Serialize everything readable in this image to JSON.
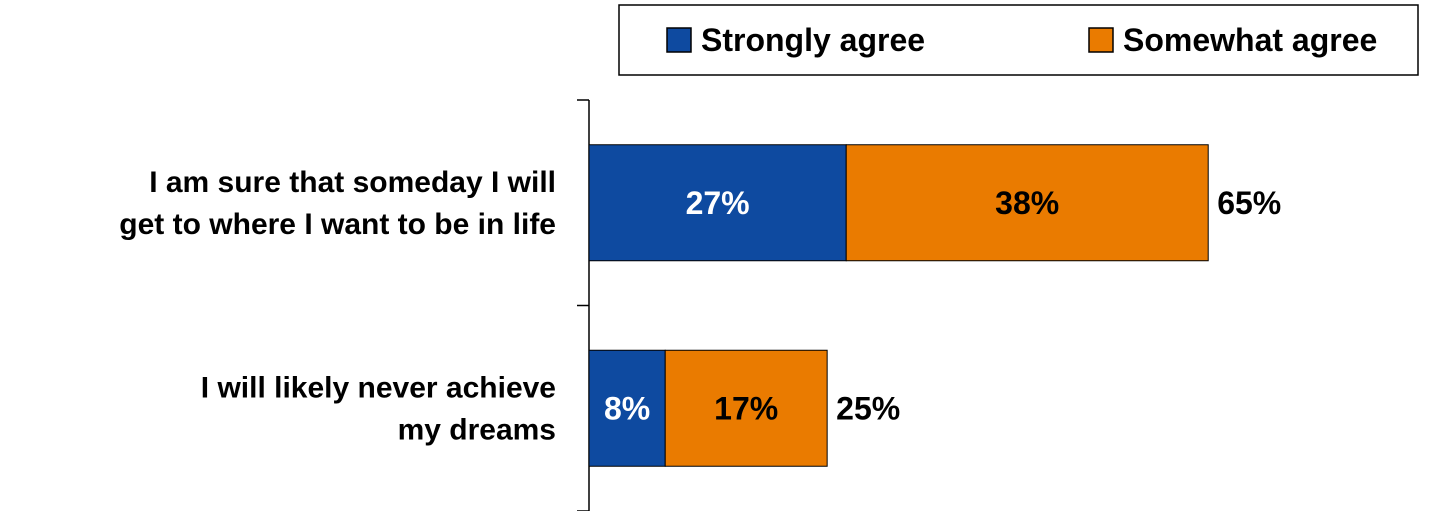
{
  "chart_data": {
    "type": "bar",
    "orientation": "horizontal",
    "stacked": true,
    "categories": [
      [
        "I am sure that someday I will",
        "get to where I want to be in life"
      ],
      [
        "I will likely never achieve",
        "my dreams"
      ]
    ],
    "series": [
      {
        "name": "Strongly agree",
        "values": [
          27,
          8
        ],
        "labels": [
          "27%",
          "8%"
        ],
        "color": "#0e4aa0",
        "label_color": "#ffffff"
      },
      {
        "name": "Somewhat agree",
        "values": [
          38,
          17
        ],
        "labels": [
          "38%",
          "17%"
        ],
        "color": "#ea7b00",
        "label_color": "#000000"
      }
    ],
    "totals": [
      "65%",
      "25%"
    ],
    "total_values": [
      65,
      25
    ],
    "xlim": [
      0,
      95
    ],
    "legend": "top-right",
    "grid": false
  }
}
